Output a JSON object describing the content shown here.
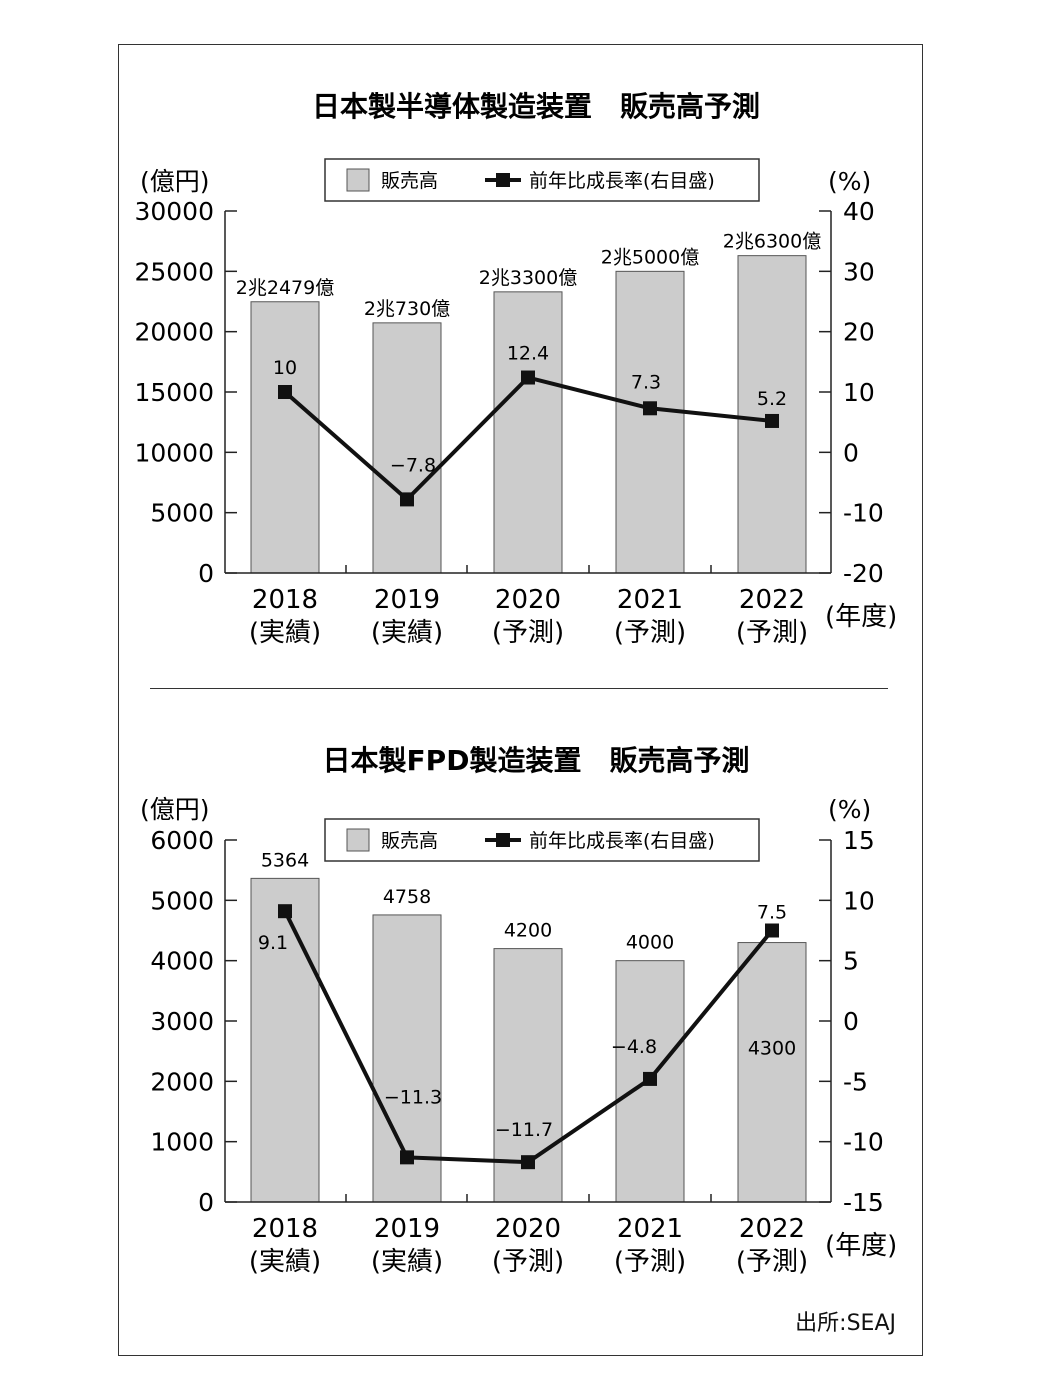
{
  "charts": [
    {
      "title": "日本製半導体製造装置　販売高予測",
      "left_unit": "(億円)",
      "right_unit": "(%)",
      "x_unit": "(年度)",
      "legend": {
        "bar": "販売高",
        "line": "前年比成長率(右目盛)"
      },
      "left_ticks": [
        "0",
        "5000",
        "10000",
        "15000",
        "20000",
        "25000",
        "30000"
      ],
      "right_ticks": [
        "-20",
        "-10",
        "0",
        "10",
        "20",
        "30",
        "40"
      ]
    },
    {
      "title": "日本製FPD製造装置　販売高予測",
      "left_unit": "(億円)",
      "right_unit": "(%)",
      "x_unit": "(年度)",
      "legend": {
        "bar": "販売高",
        "line": "前年比成長率(右目盛)"
      },
      "left_ticks": [
        "0",
        "1000",
        "2000",
        "3000",
        "4000",
        "5000",
        "6000"
      ],
      "right_ticks": [
        "-15",
        "-10",
        "-5",
        "0",
        "5",
        "10",
        "15"
      ]
    }
  ],
  "source": "出所:SEAJ",
  "colors": {
    "bar": "#cccccc",
    "bar_stroke": "#555555",
    "line": "#111111"
  },
  "chart_data": [
    {
      "type": "bar",
      "title": "日本製半導体製造装置　販売高予測",
      "categories": [
        "2018",
        "2019",
        "2020",
        "2021",
        "2022"
      ],
      "category_notes": [
        "(実績)",
        "(実績)",
        "(予測)",
        "(予測)",
        "(予測)"
      ],
      "series": [
        {
          "name": "販売高",
          "type": "bar",
          "axis": "left",
          "values": [
            22479,
            20730,
            23300,
            25000,
            26300
          ],
          "labels": [
            "2兆2479億",
            "2兆730億",
            "2兆3300億",
            "2兆5000億",
            "2兆6300億"
          ]
        },
        {
          "name": "前年比成長率(右目盛)",
          "type": "line",
          "axis": "right",
          "values": [
            10,
            -7.8,
            12.4,
            7.3,
            5.2
          ],
          "labels": [
            "10",
            "−7.8",
            "12.4",
            "7.3",
            "5.2"
          ]
        }
      ],
      "ylim": [
        0,
        30000
      ],
      "y2lim": [
        -20,
        40
      ],
      "ylabel": "(億円)",
      "y2label": "(%)",
      "xlabel": "(年度)",
      "legend": "top-center",
      "grid": false
    },
    {
      "type": "bar",
      "title": "日本製FPD製造装置　販売高予測",
      "categories": [
        "2018",
        "2019",
        "2020",
        "2021",
        "2022"
      ],
      "category_notes": [
        "(実績)",
        "(実績)",
        "(予測)",
        "(予測)",
        "(予測)"
      ],
      "series": [
        {
          "name": "販売高",
          "type": "bar",
          "axis": "left",
          "values": [
            5364,
            4758,
            4200,
            4000,
            4300
          ],
          "labels": [
            "5364",
            "4758",
            "4200",
            "4000",
            "4300"
          ]
        },
        {
          "name": "前年比成長率(右目盛)",
          "type": "line",
          "axis": "right",
          "values": [
            9.1,
            -11.3,
            -11.7,
            -4.8,
            7.5
          ],
          "labels": [
            "9.1",
            "−11.3",
            "−11.7",
            "−4.8",
            "7.5"
          ]
        }
      ],
      "ylim": [
        0,
        6000
      ],
      "y2lim": [
        -15,
        15
      ],
      "ylabel": "(億円)",
      "y2label": "(%)",
      "xlabel": "(年度)",
      "legend": "top-center",
      "grid": false
    }
  ]
}
